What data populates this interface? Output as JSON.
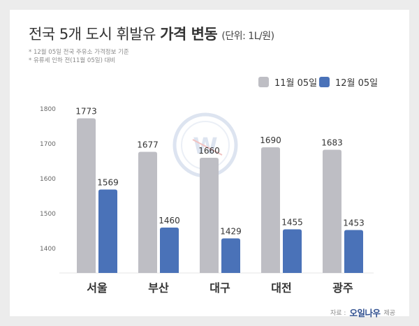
{
  "title": {
    "main": "전국 5개 도시 휘발유",
    "bold": "가격 변동",
    "unit": "(단위: 1L/원)"
  },
  "notes": [
    "* 12월 05일 전국 주유소 가격정보 기준",
    "* 유류세 인하 전(11월 05일) 대비"
  ],
  "source": {
    "prefix": "자료 :",
    "brand": "오일나우",
    "suffix": "제공"
  },
  "colors": {
    "series1": "#bebec4",
    "series2": "#4a72b8",
    "background": "#ececec"
  },
  "chart_data": {
    "type": "bar",
    "categories": [
      "서울",
      "부산",
      "대구",
      "대전",
      "광주"
    ],
    "series": [
      {
        "name": "11월 05일",
        "values": [
          1773,
          1677,
          1660,
          1690,
          1683
        ]
      },
      {
        "name": "12월 05일",
        "values": [
          1569,
          1460,
          1429,
          1455,
          1453
        ]
      }
    ],
    "yticks": [
      1400,
      1500,
      1600,
      1700,
      1800
    ],
    "ylim": [
      1330,
      1830
    ],
    "legend": "top-right",
    "grid": false
  }
}
